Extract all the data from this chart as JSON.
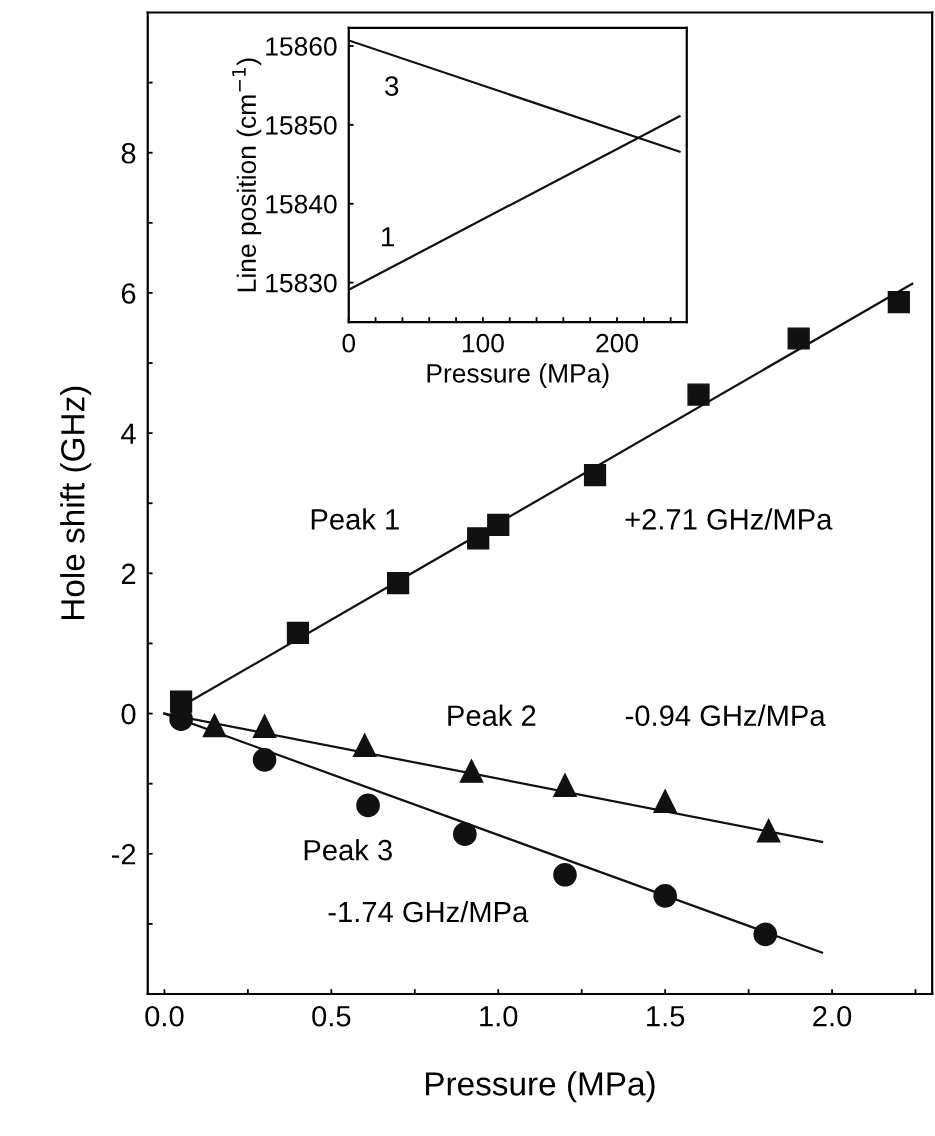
{
  "chart_data": [
    {
      "type": "scatter",
      "xlabel": "Pressure (MPa)",
      "ylabel": "Hole shift (GHz)",
      "xlim": [
        -0.05,
        2.3
      ],
      "ylim": [
        -4,
        10
      ],
      "xticks": [
        {
          "value": 0.0,
          "label": "0.0"
        },
        {
          "value": 0.25,
          "label": null
        },
        {
          "value": 0.5,
          "label": "0.5"
        },
        {
          "value": 0.75,
          "label": null
        },
        {
          "value": 1.0,
          "label": "1.0"
        },
        {
          "value": 1.25,
          "label": null
        },
        {
          "value": 1.5,
          "label": "1.5"
        },
        {
          "value": 1.75,
          "label": null
        },
        {
          "value": 2.0,
          "label": "2.0"
        },
        {
          "value": 2.25,
          "label": null
        }
      ],
      "yticks": [
        {
          "value": -3,
          "label": null
        },
        -2,
        {
          "value": -1,
          "label": null
        },
        0,
        {
          "value": 1,
          "label": null
        },
        2,
        {
          "value": 3,
          "label": null
        },
        4,
        {
          "value": 5,
          "label": null
        },
        6,
        {
          "value": 7,
          "label": null
        },
        8,
        {
          "value": 9,
          "label": null
        }
      ],
      "grid": false,
      "legend": false,
      "series": [
        {
          "type": "scatter",
          "marker": "square",
          "color": "#111111",
          "x": [
            0.05,
            0.4,
            0.7,
            0.94,
            1.0,
            1.29,
            1.6,
            1.9,
            2.2
          ],
          "values": [
            0.17,
            1.15,
            1.86,
            2.5,
            2.69,
            3.4,
            4.55,
            5.35,
            5.87
          ]
        },
        {
          "type": "scatter",
          "marker": "triangle",
          "color": "#111111",
          "x": [
            0.15,
            0.3,
            0.6,
            0.92,
            1.2,
            1.5,
            1.81
          ],
          "values": [
            -0.17,
            -0.18,
            -0.45,
            -0.82,
            -1.02,
            -1.25,
            -1.67
          ]
        },
        {
          "type": "scatter",
          "marker": "circle",
          "color": "#111111",
          "x": [
            0.05,
            0.3,
            0.61,
            0.9,
            1.2,
            1.5,
            1.8
          ],
          "values": [
            -0.08,
            -0.66,
            -1.31,
            -1.72,
            -2.3,
            -2.6,
            -3.15
          ]
        },
        {
          "type": "line",
          "color": "#111111",
          "x": [
            0.05,
            2.24
          ],
          "values": [
            0.1,
            6.13
          ]
        },
        {
          "type": "line",
          "color": "#111111",
          "x": [
            0.0,
            1.97
          ],
          "values": [
            0.0,
            -1.83
          ]
        },
        {
          "type": "line",
          "color": "#111111",
          "x": [
            0.0,
            1.97
          ],
          "values": [
            0.0,
            -3.41
          ]
        }
      ],
      "annotations": [
        "Peak 1",
        "+2.71 GHz/MPa",
        "Peak 2",
        "-0.94 GHz/MPa",
        "Peak 3",
        "-1.74 GHz/MPa"
      ]
    },
    {
      "type": "line",
      "xlabel": "Pressure (MPa)",
      "ylabel": "Line position (cm$^{−1}$)",
      "xlim": [
        0,
        252
      ],
      "ylim": [
        15825,
        15862.3
      ],
      "xticks": [
        0,
        {
          "value": 20,
          "label": null
        },
        {
          "value": 40,
          "label": null
        },
        {
          "value": 60,
          "label": null
        },
        {
          "value": 80,
          "label": null
        },
        100,
        {
          "value": 120,
          "label": null
        },
        {
          "value": 140,
          "label": null
        },
        {
          "value": 160,
          "label": null
        },
        {
          "value": 180,
          "label": null
        },
        200,
        {
          "value": 220,
          "label": null
        },
        {
          "value": 240,
          "label": null
        }
      ],
      "yticks": [
        15830,
        15840,
        15850,
        15860
      ],
      "grid": false,
      "legend": false,
      "series": [
        {
          "color": "#111111",
          "x": [
            0,
            246.6
          ],
          "values": [
            15860.7,
            15846.6
          ]
        },
        {
          "color": "#111111",
          "x": [
            0,
            246.6
          ],
          "values": [
            15829.1,
            15851.1
          ]
        }
      ],
      "annotations": [
        "3",
        "1"
      ]
    }
  ]
}
